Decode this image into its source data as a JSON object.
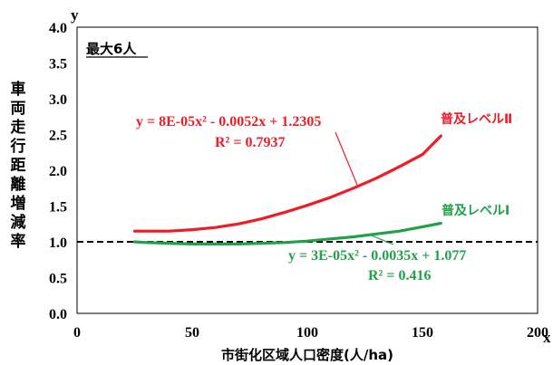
{
  "chart_data": {
    "type": "line",
    "panel_label": "最大6人",
    "xlabel": "市街化区域人口密度(人/ha)",
    "ylabel": "車両走行距離増減率",
    "x_axis_symbol": "x",
    "y_axis_symbol": "y",
    "xlim": [
      0,
      200
    ],
    "ylim": [
      0,
      4.0
    ],
    "x_ticks": [
      "0",
      "50",
      "100",
      "150",
      "200"
    ],
    "y_ticks": [
      "0.0",
      "0.5",
      "1.0",
      "1.5",
      "2.0",
      "2.5",
      "3.0",
      "3.5",
      "4.0"
    ],
    "reference_line": {
      "y": 1.0,
      "style": "dashed"
    },
    "series": [
      {
        "name": "普及レベルⅡ",
        "color": "#ee1c25",
        "x": [
          25,
          30,
          40,
          50,
          60,
          70,
          80,
          90,
          100,
          110,
          120,
          130,
          140,
          150,
          158
        ],
        "y": [
          1.15,
          1.15,
          1.15,
          1.17,
          1.2,
          1.25,
          1.32,
          1.41,
          1.51,
          1.62,
          1.75,
          1.89,
          2.05,
          2.22,
          2.48
        ],
        "equation": "y = 8E-05x² - 0.0052x + 1.2305",
        "r_squared": "R² = 0.7937"
      },
      {
        "name": "普及レベルⅠ",
        "color": "#21a04a",
        "x": [
          25,
          30,
          40,
          50,
          60,
          70,
          80,
          90,
          100,
          110,
          120,
          130,
          140,
          150,
          158
        ],
        "y": [
          1.0,
          0.99,
          0.98,
          0.97,
          0.97,
          0.97,
          0.98,
          0.99,
          1.01,
          1.04,
          1.07,
          1.11,
          1.15,
          1.21,
          1.26
        ],
        "equation": "y = 3E-05x² - 0.0035x + 1.077",
        "r_squared": "R² = 0.416"
      }
    ]
  }
}
